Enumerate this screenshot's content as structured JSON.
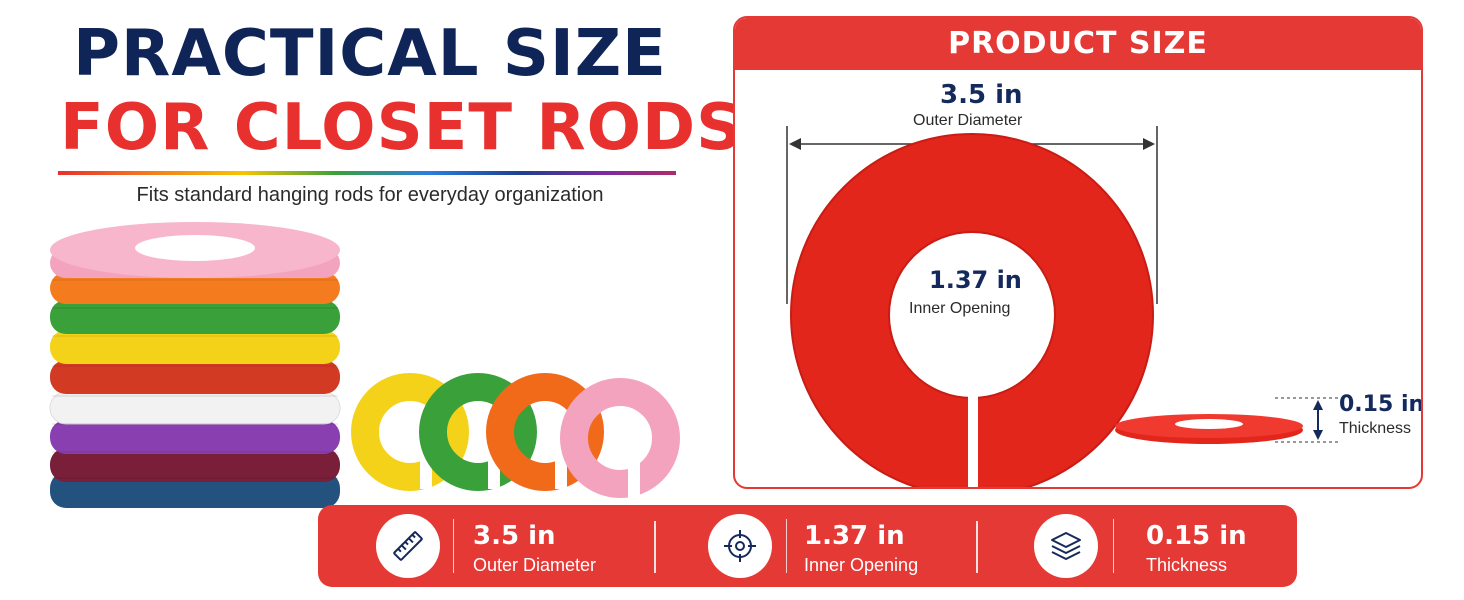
{
  "headline": {
    "line1": "PRACTICAL SIZE",
    "line2": "FOR CLOSET RODS",
    "subtitle": "Fits standard hanging rods for everyday organization"
  },
  "panel": {
    "title": "PRODUCT SIZE",
    "outer": {
      "value": "3.5 in",
      "label": "Outer Diameter"
    },
    "inner": {
      "value": "1.37 in",
      "label": "Inner Opening"
    },
    "thickness": {
      "value": "0.15 in",
      "label": "Thickness"
    }
  },
  "specs": [
    {
      "value": "3.5 in",
      "label": "Outer Diameter",
      "icon": "ruler-icon"
    },
    {
      "value": "1.37 in",
      "label": "Inner Opening",
      "icon": "crosshair-icon"
    },
    {
      "value": "0.15 in",
      "label": "Thickness",
      "icon": "layers-icon"
    }
  ],
  "colors": {
    "navy": "#0f2557",
    "accent_red": "#e53935",
    "ring_colors": [
      "#f4a3be",
      "#f47c1e",
      "#3aa03a",
      "#f5d21a",
      "#d33a24",
      "#ffffff",
      "#8a3fb0",
      "#7a1f3a",
      "#24527f"
    ]
  }
}
